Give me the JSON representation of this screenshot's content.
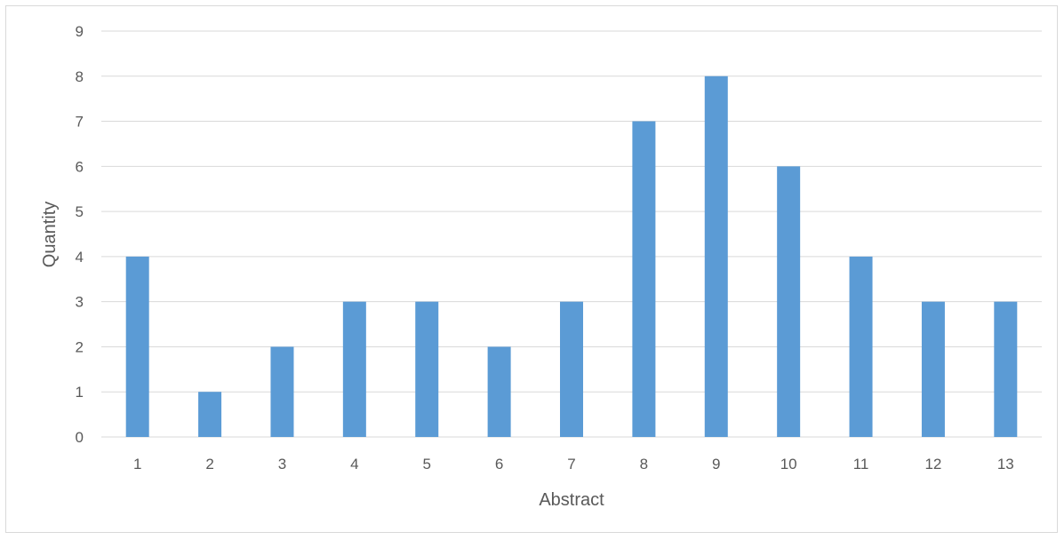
{
  "chart_data": {
    "type": "bar",
    "title": "",
    "xlabel": "Abstract",
    "ylabel": "Quantity",
    "categories": [
      "1",
      "2",
      "3",
      "4",
      "5",
      "6",
      "7",
      "8",
      "9",
      "10",
      "11",
      "12",
      "13"
    ],
    "values": [
      4,
      1,
      2,
      3,
      3,
      2,
      3,
      7,
      8,
      6,
      4,
      3,
      3
    ],
    "ylim": [
      0,
      9
    ],
    "yticks": [
      "0",
      "1",
      "2",
      "3",
      "4",
      "5",
      "6",
      "7",
      "8",
      "9"
    ],
    "grid": true,
    "legend": "none",
    "colors": {
      "bar": "#5b9bd5",
      "grid": "#d9d9d9",
      "text": "#595959",
      "frame": "#d9d9d9"
    }
  }
}
